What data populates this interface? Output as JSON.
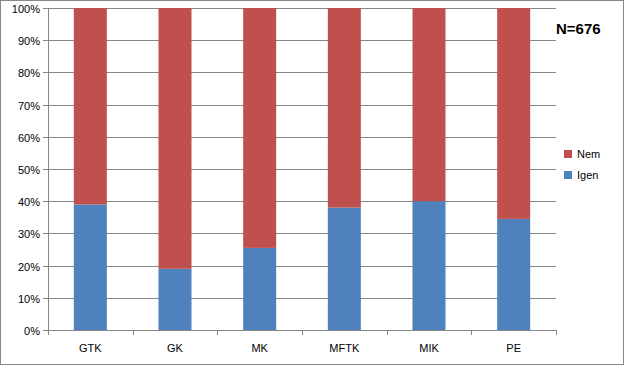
{
  "chart_data": {
    "type": "bar",
    "stacked": true,
    "legend": "right",
    "grid": true,
    "annotations": [
      "N=676"
    ],
    "categories": [
      "GTK",
      "GK",
      "MK",
      "MFTK",
      "MIK",
      "PE"
    ],
    "series": [
      {
        "name": "Igen",
        "color": "#4f81bd",
        "values": [
          39,
          19,
          25.5,
          38,
          40,
          34.5
        ]
      },
      {
        "name": "Nem",
        "color": "#c0504d",
        "values": [
          61,
          81,
          74.5,
          62,
          60,
          65.5
        ]
      }
    ],
    "ylim": [
      0,
      100
    ],
    "yticks": [
      {
        "value": 0,
        "label": "0%"
      },
      {
        "value": 10,
        "label": "10%"
      },
      {
        "value": 20,
        "label": "20%"
      },
      {
        "value": 30,
        "label": "30%"
      },
      {
        "value": 40,
        "label": "40%"
      },
      {
        "value": 50,
        "label": "50%"
      },
      {
        "value": 60,
        "label": "60%"
      },
      {
        "value": 70,
        "label": "70%"
      },
      {
        "value": 80,
        "label": "80%"
      },
      {
        "value": 90,
        "label": "90%"
      },
      {
        "value": 100,
        "label": "100%"
      }
    ]
  }
}
